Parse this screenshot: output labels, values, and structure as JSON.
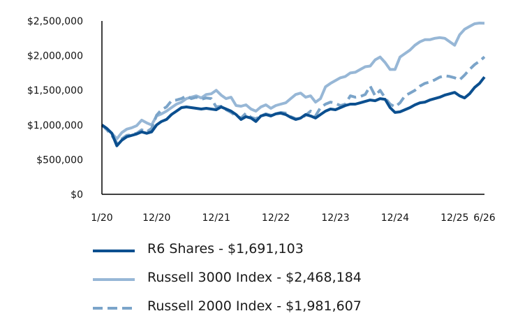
{
  "chart_data": {
    "type": "line",
    "title": "",
    "xlabel": "",
    "ylabel": "",
    "ylim": [
      0,
      2500000
    ],
    "y_ticks": [
      "$0",
      "$500,000",
      "$1,000,000",
      "$1,500,000",
      "$2,000,000",
      "$2,500,000"
    ],
    "x_ticks": [
      "1/20",
      "12/20",
      "12/21",
      "12/22",
      "12/23",
      "12/24",
      "12/25",
      "6/26"
    ],
    "grid": false,
    "legend_position": "bottom",
    "x": [
      "1/20",
      "2/20",
      "3/20",
      "4/20",
      "5/20",
      "6/20",
      "7/20",
      "8/20",
      "9/20",
      "10/20",
      "11/20",
      "12/20",
      "1/21",
      "2/21",
      "3/21",
      "4/21",
      "5/21",
      "6/21",
      "7/21",
      "8/21",
      "9/21",
      "10/21",
      "11/21",
      "12/21",
      "1/22",
      "2/22",
      "3/22",
      "4/22",
      "5/22",
      "6/22",
      "7/22",
      "8/22",
      "9/22",
      "10/22",
      "11/22",
      "12/22",
      "1/23",
      "2/23",
      "3/23",
      "4/23",
      "5/23",
      "6/23",
      "7/23",
      "8/23",
      "9/23",
      "10/23",
      "11/23",
      "12/23",
      "1/24",
      "2/24",
      "3/24",
      "4/24",
      "5/24",
      "6/24",
      "7/24",
      "8/24",
      "9/24",
      "10/24",
      "11/24",
      "12/24",
      "1/25",
      "2/25",
      "3/25",
      "4/25",
      "5/25",
      "6/25",
      "7/25",
      "8/25",
      "9/25",
      "10/25",
      "11/25",
      "12/25",
      "1/26",
      "2/26",
      "3/26",
      "4/26",
      "5/26",
      "6/26"
    ],
    "series": [
      {
        "name": "R6 Shares - $1,691,103",
        "color": "#0b4f8f",
        "dash": "solid",
        "values": [
          1000000,
          950000,
          880000,
          700000,
          780000,
          830000,
          850000,
          870000,
          900000,
          880000,
          900000,
          1000000,
          1050000,
          1080000,
          1150000,
          1200000,
          1250000,
          1260000,
          1250000,
          1240000,
          1230000,
          1240000,
          1230000,
          1220000,
          1260000,
          1230000,
          1200000,
          1150000,
          1080000,
          1120000,
          1100000,
          1050000,
          1130000,
          1150000,
          1130000,
          1160000,
          1170000,
          1150000,
          1110000,
          1080000,
          1100000,
          1150000,
          1130000,
          1100000,
          1150000,
          1200000,
          1230000,
          1220000,
          1250000,
          1280000,
          1300000,
          1300000,
          1320000,
          1340000,
          1360000,
          1350000,
          1380000,
          1370000,
          1250000,
          1180000,
          1190000,
          1220000,
          1250000,
          1290000,
          1320000,
          1330000,
          1360000,
          1380000,
          1400000,
          1430000,
          1450000,
          1470000,
          1420000,
          1390000,
          1450000,
          1540000,
          1600000,
          1691103
        ]
      },
      {
        "name": "Russell 3000 Index - $2,468,184",
        "color": "#97b7d6",
        "dash": "solid",
        "values": [
          1000000,
          940000,
          880000,
          800000,
          890000,
          940000,
          960000,
          990000,
          1070000,
          1030000,
          1000000,
          1130000,
          1160000,
          1200000,
          1250000,
          1300000,
          1330000,
          1380000,
          1400000,
          1420000,
          1390000,
          1440000,
          1450000,
          1500000,
          1430000,
          1380000,
          1400000,
          1280000,
          1270000,
          1290000,
          1230000,
          1200000,
          1260000,
          1290000,
          1240000,
          1280000,
          1300000,
          1320000,
          1380000,
          1440000,
          1460000,
          1400000,
          1420000,
          1330000,
          1380000,
          1550000,
          1600000,
          1640000,
          1680000,
          1700000,
          1750000,
          1760000,
          1800000,
          1840000,
          1850000,
          1940000,
          1980000,
          1900000,
          1800000,
          1800000,
          1980000,
          2030000,
          2080000,
          2150000,
          2200000,
          2230000,
          2230000,
          2250000,
          2260000,
          2250000,
          2200000,
          2150000,
          2300000,
          2380000,
          2420000,
          2460000,
          2470000,
          2468184
        ]
      },
      {
        "name": "Russell 2000 Index - $1,981,607",
        "color": "#7ba4c9",
        "dash": "dashed",
        "values": [
          1000000,
          930000,
          850000,
          740000,
          800000,
          850000,
          860000,
          880000,
          930000,
          900000,
          950000,
          1140000,
          1220000,
          1260000,
          1350000,
          1360000,
          1380000,
          1420000,
          1380000,
          1400000,
          1370000,
          1390000,
          1380000,
          1260000,
          1270000,
          1220000,
          1180000,
          1130000,
          1100000,
          1170000,
          1110000,
          1090000,
          1130000,
          1160000,
          1140000,
          1160000,
          1180000,
          1170000,
          1120000,
          1090000,
          1090000,
          1140000,
          1200000,
          1130000,
          1250000,
          1300000,
          1330000,
          1310000,
          1280000,
          1300000,
          1420000,
          1400000,
          1410000,
          1440000,
          1560000,
          1420000,
          1500000,
          1390000,
          1300000,
          1260000,
          1320000,
          1420000,
          1460000,
          1500000,
          1560000,
          1600000,
          1620000,
          1650000,
          1690000,
          1710000,
          1700000,
          1680000,
          1650000,
          1720000,
          1800000,
          1870000,
          1920000,
          1981607
        ]
      }
    ]
  }
}
